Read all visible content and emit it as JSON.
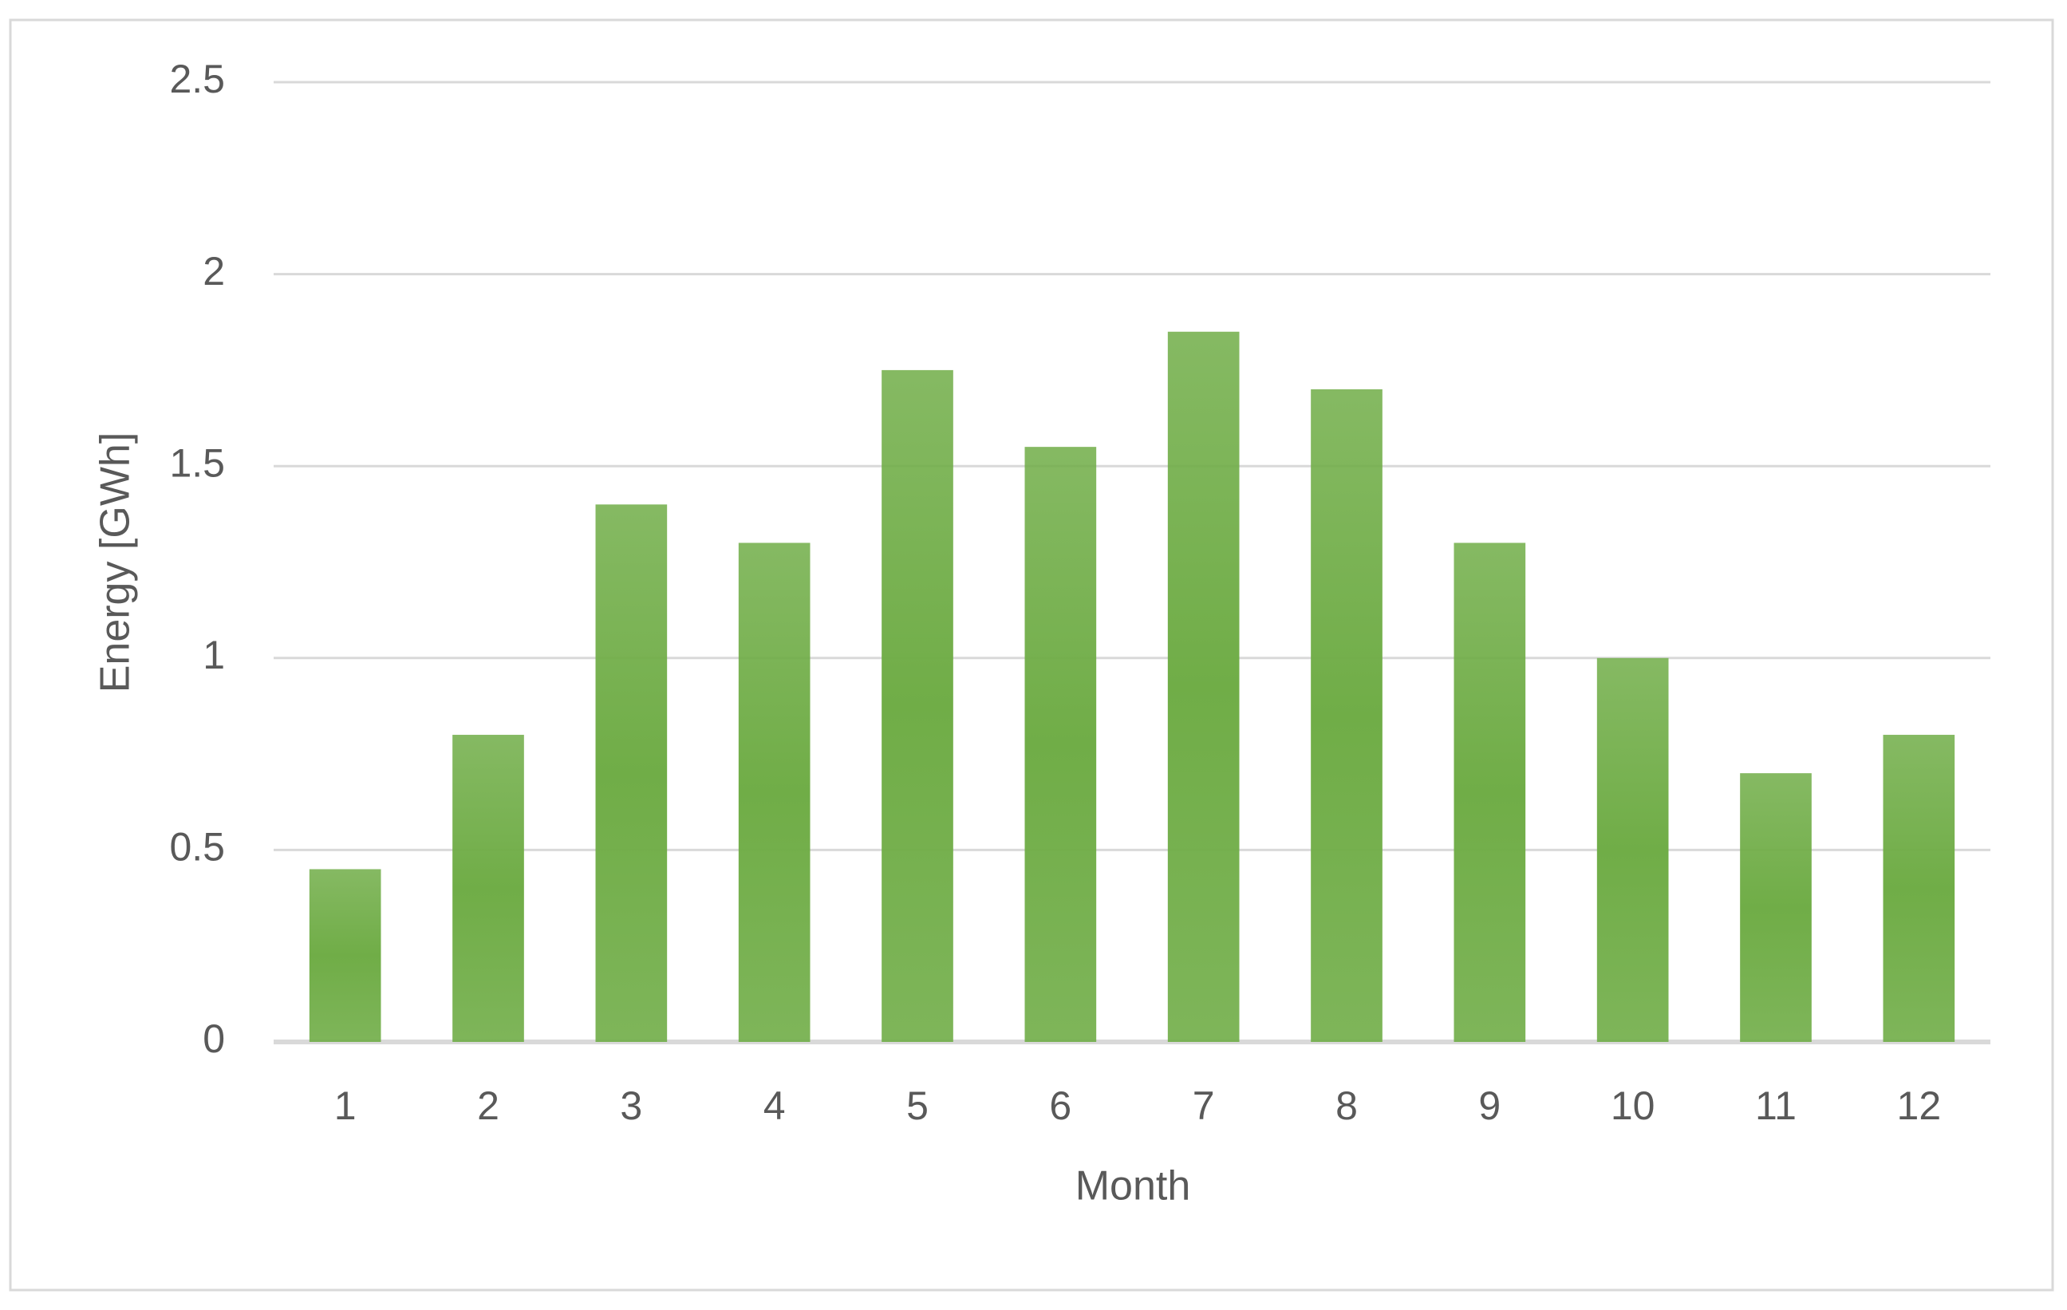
{
  "chart_data": {
    "type": "bar",
    "x_label": "Month",
    "y_label": "Energy [GWh]",
    "categories": [
      "1",
      "2",
      "3",
      "4",
      "5",
      "6",
      "7",
      "8",
      "9",
      "10",
      "11",
      "12"
    ],
    "values": [
      0.45,
      0.8,
      1.4,
      1.3,
      1.75,
      1.55,
      1.85,
      1.7,
      1.3,
      1.0,
      0.7,
      0.8
    ],
    "color": "#70ad47",
    "ylim": [
      0,
      2.5
    ],
    "yticks": [
      0,
      0.5,
      1,
      1.5,
      2,
      2.5
    ],
    "grid": true
  }
}
